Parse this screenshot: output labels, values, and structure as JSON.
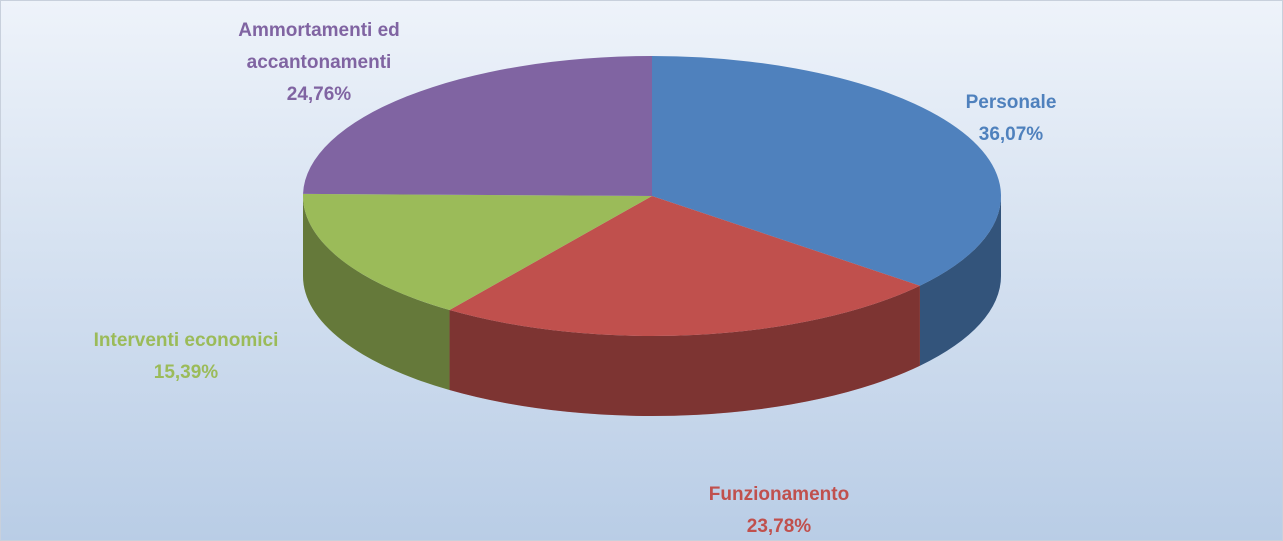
{
  "chart_data": {
    "type": "pie",
    "categories": [
      "Personale",
      "Funzionamento",
      "Interventi economici",
      "Ammortamenti ed accantonamenti"
    ],
    "values": [
      36.07,
      23.78,
      15.39,
      24.76
    ],
    "value_labels": [
      "36,07%",
      "23,78%",
      "15,39%",
      "24,76%"
    ],
    "colors": [
      "#4f81bd",
      "#c0504d",
      "#9bbb59",
      "#8064a2"
    ]
  }
}
